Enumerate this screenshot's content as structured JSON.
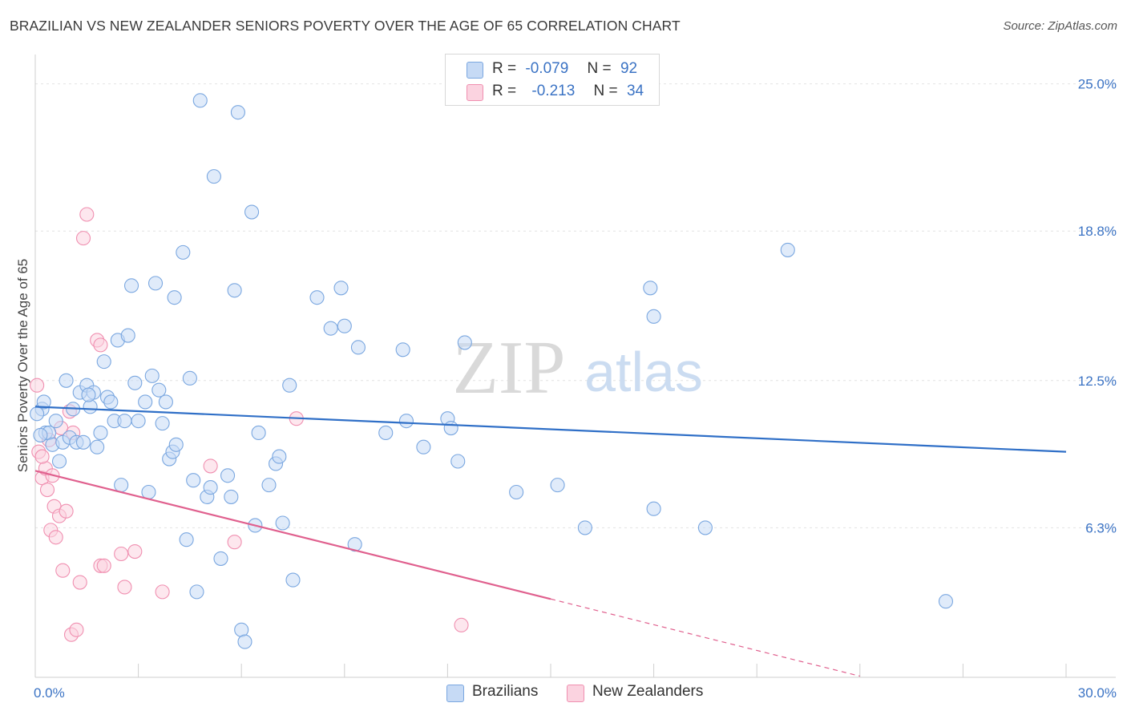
{
  "chart_data": {
    "type": "scatter",
    "title": "BRAZILIAN VS NEW ZEALANDER SENIORS POVERTY OVER THE AGE OF 65 CORRELATION CHART",
    "source": "Source: ZipAtlas.com",
    "ylabel": "Seniors Poverty Over the Age of 65",
    "xlabel": "",
    "xlim": [
      0,
      30
    ],
    "ylim": [
      0,
      26
    ],
    "x_tick_labels": [
      "0.0%",
      "30.0%"
    ],
    "y_ticks": [
      6.3,
      12.5,
      18.8,
      25.0
    ],
    "y_tick_labels": [
      "6.3%",
      "12.5%",
      "18.8%",
      "25.0%"
    ],
    "watermark": {
      "zip": "ZIP",
      "atlas": "atlas"
    },
    "legend": [
      {
        "r_label": "R =",
        "r_value": "-0.079",
        "n_label": "N =",
        "n_value": "92"
      },
      {
        "r_label": "R =",
        "r_value": "-0.213",
        "n_label": "N =",
        "n_value": "34"
      }
    ],
    "series": [
      {
        "name": "Brazilians",
        "color": "#7aa7e0",
        "fill": "#c6daf5",
        "line_color": "#2f6fc7",
        "trend": {
          "x0": 0,
          "y0": 11.4,
          "x1": 30,
          "y1": 9.5
        },
        "points": [
          [
            0.2,
            11.3
          ],
          [
            0.3,
            10.3
          ],
          [
            0.4,
            10.3
          ],
          [
            0.5,
            9.8
          ],
          [
            0.6,
            10.8
          ],
          [
            0.7,
            9.1
          ],
          [
            0.8,
            9.9
          ],
          [
            0.9,
            12.5
          ],
          [
            1.0,
            10.1
          ],
          [
            1.1,
            11.3
          ],
          [
            1.2,
            9.9
          ],
          [
            1.3,
            12.0
          ],
          [
            1.4,
            9.9
          ],
          [
            1.5,
            12.3
          ],
          [
            1.6,
            11.4
          ],
          [
            1.7,
            12.0
          ],
          [
            1.8,
            9.7
          ],
          [
            1.9,
            10.3
          ],
          [
            2.0,
            13.3
          ],
          [
            2.1,
            11.8
          ],
          [
            2.2,
            11.6
          ],
          [
            2.3,
            10.8
          ],
          [
            2.4,
            14.2
          ],
          [
            2.5,
            8.1
          ],
          [
            2.6,
            10.8
          ],
          [
            2.7,
            14.4
          ],
          [
            2.8,
            16.5
          ],
          [
            2.9,
            12.4
          ],
          [
            3.0,
            10.8
          ],
          [
            3.2,
            11.6
          ],
          [
            3.3,
            7.8
          ],
          [
            3.4,
            12.7
          ],
          [
            3.5,
            16.6
          ],
          [
            3.6,
            12.1
          ],
          [
            3.7,
            10.7
          ],
          [
            3.8,
            11.6
          ],
          [
            3.9,
            9.2
          ],
          [
            4.0,
            9.5
          ],
          [
            4.05,
            16.0
          ],
          [
            4.1,
            9.8
          ],
          [
            4.3,
            17.9
          ],
          [
            4.4,
            5.8
          ],
          [
            4.5,
            12.6
          ],
          [
            4.6,
            8.3
          ],
          [
            4.7,
            3.6
          ],
          [
            4.8,
            24.3
          ],
          [
            5.0,
            7.6
          ],
          [
            5.1,
            8.0
          ],
          [
            5.2,
            21.1
          ],
          [
            5.4,
            5.0
          ],
          [
            5.6,
            8.5
          ],
          [
            5.7,
            7.6
          ],
          [
            5.8,
            16.3
          ],
          [
            5.9,
            23.8
          ],
          [
            6.0,
            2.0
          ],
          [
            6.1,
            1.5
          ],
          [
            6.3,
            19.6
          ],
          [
            6.4,
            6.4
          ],
          [
            6.5,
            10.3
          ],
          [
            6.8,
            8.1
          ],
          [
            7.0,
            9.0
          ],
          [
            7.1,
            9.3
          ],
          [
            7.2,
            6.5
          ],
          [
            7.4,
            12.3
          ],
          [
            7.5,
            4.1
          ],
          [
            8.2,
            16.0
          ],
          [
            8.6,
            14.7
          ],
          [
            8.9,
            16.4
          ],
          [
            9.0,
            14.8
          ],
          [
            9.3,
            5.6
          ],
          [
            9.4,
            13.9
          ],
          [
            10.2,
            10.3
          ],
          [
            10.7,
            13.8
          ],
          [
            10.8,
            10.8
          ],
          [
            11.3,
            9.7
          ],
          [
            12.0,
            10.9
          ],
          [
            12.1,
            10.5
          ],
          [
            12.3,
            9.1
          ],
          [
            12.5,
            14.1
          ],
          [
            14.0,
            7.8
          ],
          [
            15.2,
            8.1
          ],
          [
            16.0,
            6.3
          ],
          [
            17.9,
            16.4
          ],
          [
            18.0,
            15.2
          ],
          [
            18.0,
            7.1
          ],
          [
            19.5,
            6.3
          ],
          [
            21.9,
            18.0
          ],
          [
            26.5,
            3.2
          ],
          [
            0.15,
            10.2
          ],
          [
            0.25,
            11.6
          ],
          [
            1.55,
            11.9
          ],
          [
            0.05,
            11.1
          ]
        ]
      },
      {
        "name": "New Zealanders",
        "color": "#f08fb0",
        "fill": "#fbd3e0",
        "line_color": "#e0608e",
        "trend": {
          "x0": 0,
          "y0": 8.7,
          "x1": 15,
          "y1": 3.3
        },
        "trend_dashed": {
          "x0": 15,
          "y0": 3.3,
          "x1": 24,
          "y1": 0.05
        },
        "points": [
          [
            0.05,
            12.3
          ],
          [
            0.1,
            9.5
          ],
          [
            0.2,
            8.4
          ],
          [
            0.3,
            8.8
          ],
          [
            0.35,
            7.9
          ],
          [
            0.4,
            10.0
          ],
          [
            0.45,
            6.2
          ],
          [
            0.5,
            8.5
          ],
          [
            0.55,
            7.2
          ],
          [
            0.6,
            5.9
          ],
          [
            0.7,
            6.8
          ],
          [
            0.75,
            10.5
          ],
          [
            0.8,
            4.5
          ],
          [
            0.9,
            7.0
          ],
          [
            1.0,
            11.2
          ],
          [
            1.05,
            1.8
          ],
          [
            1.1,
            10.3
          ],
          [
            1.2,
            2.0
          ],
          [
            1.3,
            4.0
          ],
          [
            1.4,
            18.5
          ],
          [
            1.5,
            19.5
          ],
          [
            1.8,
            14.2
          ],
          [
            1.9,
            14.0
          ],
          [
            1.9,
            4.7
          ],
          [
            2.0,
            4.7
          ],
          [
            2.5,
            5.2
          ],
          [
            2.6,
            3.8
          ],
          [
            2.9,
            5.3
          ],
          [
            3.7,
            3.6
          ],
          [
            5.1,
            8.9
          ],
          [
            5.8,
            5.7
          ],
          [
            7.6,
            10.9
          ],
          [
            12.4,
            2.2
          ],
          [
            0.2,
            9.3
          ]
        ]
      }
    ]
  }
}
